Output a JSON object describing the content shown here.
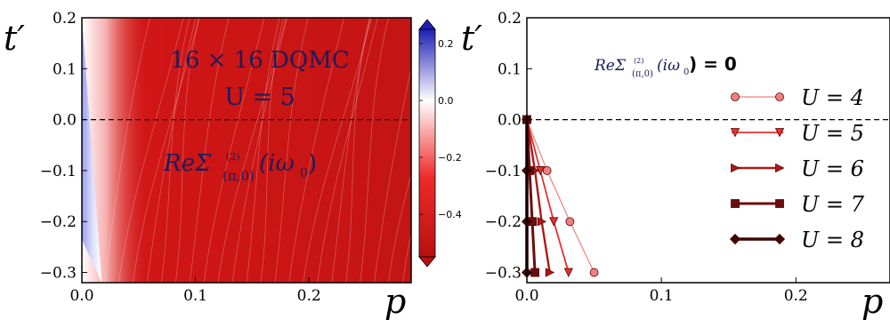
{
  "chart_data": [
    {
      "type": "heatmap",
      "title": "",
      "annotations": [
        "16 × 16 DQMC",
        "U = 5",
        "ReΣ",
        "(2)",
        "(π,0)",
        "(iω",
        "0",
        ")"
      ],
      "xlabel": "p",
      "ylabel": "t′",
      "xlim": [
        0.0,
        0.29
      ],
      "ylim": [
        -0.32,
        0.2
      ],
      "x_ticks": [
        0.0,
        0.1,
        0.2
      ],
      "y_ticks": [
        0.2,
        0.1,
        0.0,
        -0.1,
        -0.2,
        -0.3
      ],
      "x_tick_labels": [
        "0.0",
        "0.1",
        "0.2"
      ],
      "y_tick_labels": [
        "0.2",
        "0.1",
        "0.0",
        "−0.1",
        "−0.2",
        "−0.3"
      ],
      "reference_line": {
        "y": 0.0,
        "style": "dashed"
      },
      "zero_contour": [
        [
          0.0,
          -0.235
        ],
        [
          0.0176,
          -0.32
        ],
        [
          0.0,
          0.2
        ]
      ],
      "colorbar": {
        "ticks": [
          0.2,
          0.0,
          -0.2,
          -0.4
        ],
        "tick_labels": [
          "0.2",
          "0.0",
          "−0.2",
          "−0.4"
        ],
        "range": [
          -0.55,
          0.25
        ],
        "colormap": "blue-white-red"
      },
      "colors": {
        "positive": "#1e1eb4",
        "zero": "#ffffff",
        "negative": "#d31616"
      }
    },
    {
      "type": "line",
      "title": "",
      "annotations": [
        "ReΣ",
        "(2)",
        "(π,0)",
        "(iω",
        "0",
        ") = 0"
      ],
      "xlabel": "p",
      "ylabel": "t′",
      "xlim": [
        0.0,
        0.27
      ],
      "ylim": [
        -0.32,
        0.2
      ],
      "x_ticks": [
        0.0,
        0.1,
        0.2
      ],
      "y_ticks": [
        0.2,
        0.1,
        0.0,
        -0.1,
        -0.2,
        -0.3
      ],
      "x_tick_labels": [
        "0.0",
        "0.1",
        "0.2"
      ],
      "y_tick_labels": [
        "0.2",
        "0.1",
        "0.0",
        "−0.1",
        "−0.2",
        "−0.3"
      ],
      "reference_line": {
        "y": 0.0,
        "style": "dashed"
      },
      "legend_position": "right",
      "series": [
        {
          "name": "U = 4",
          "marker": "circle",
          "color": "#f08080",
          "x": [
            0.0,
            0.015,
            0.032,
            0.05
          ],
          "y": [
            0.0,
            -0.1,
            -0.2,
            -0.3
          ]
        },
        {
          "name": "U = 5",
          "marker": "triangle-down",
          "color": "#e83030",
          "x": [
            0.0,
            0.01,
            0.02,
            0.031
          ],
          "y": [
            0.0,
            -0.1,
            -0.2,
            -0.3
          ]
        },
        {
          "name": "U = 6",
          "marker": "triangle-right",
          "color": "#b01818",
          "x": [
            0.0,
            0.006,
            0.011,
            0.017
          ],
          "y": [
            0.0,
            -0.1,
            -0.2,
            -0.3
          ]
        },
        {
          "name": "U = 7",
          "marker": "square",
          "color": "#6a0e0e",
          "x": [
            0.0,
            0.002,
            0.004,
            0.006
          ],
          "y": [
            0.0,
            -0.1,
            -0.2,
            -0.3
          ]
        },
        {
          "name": "U = 8",
          "marker": "diamond",
          "color": "#3a0606",
          "x": [
            0.0,
            0.0,
            0.0,
            0.0
          ],
          "y": [
            0.0,
            -0.1,
            -0.2,
            -0.3
          ]
        }
      ]
    }
  ]
}
